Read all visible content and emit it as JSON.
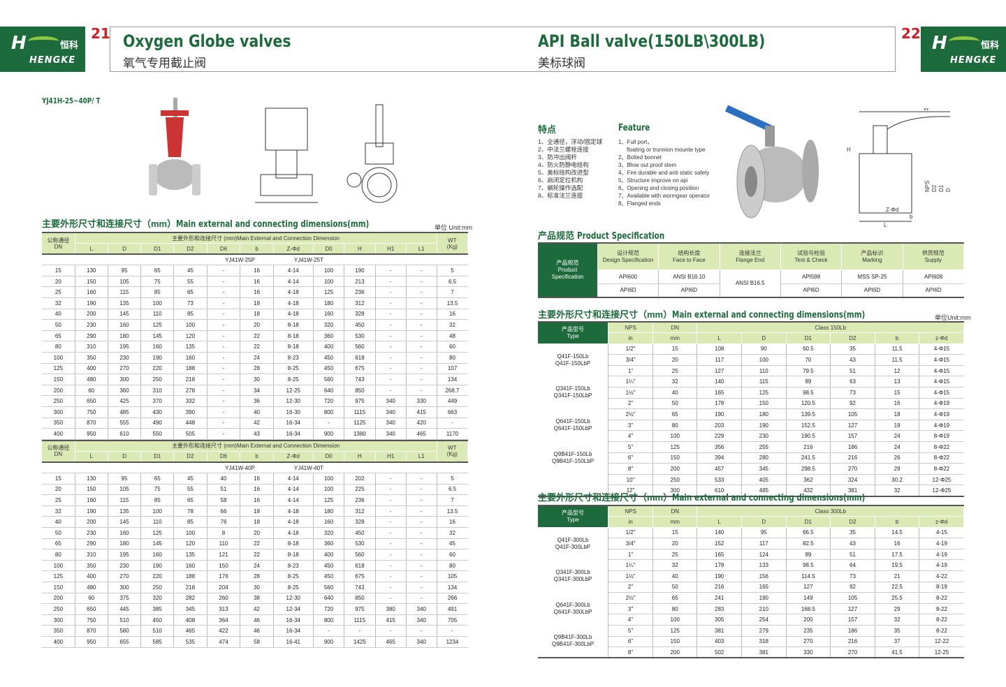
{
  "left": {
    "page_number": "21",
    "logo": {
      "cn": "恒科",
      "en": "HENGKE"
    },
    "title": "Oxygen Globe valves",
    "subtitle": "氧气专用截止阀",
    "model": "YJ41H-25~40P/ T",
    "section_heading_cn": "主要外形尺寸和连接尺寸（mm）",
    "section_heading_en": "Main external and connecting dimensions(mm)",
    "unit": "单位 Unit:mm",
    "header": {
      "dn_cn": "公称通径",
      "dn_en": "DN",
      "group": "主要外形和连接尺寸 (mm)Main External and Connection Dimension",
      "wt": "WT",
      "wt_unit": "(Kg)",
      "cols": [
        "L",
        "D",
        "D1",
        "D2",
        "D6",
        "b",
        "Z-Φd",
        "D0",
        "H",
        "H1",
        "L1"
      ]
    },
    "tables": [
      {
        "models": [
          "YJ41W-25P",
          "YJ41W-25T"
        ],
        "rows": [
          [
            "15",
            "130",
            "95",
            "65",
            "45",
            "-",
            "16",
            "4-14",
            "100",
            "190",
            "-",
            "-",
            "5"
          ],
          [
            "20",
            "150",
            "105",
            "75",
            "55",
            "-",
            "16",
            "4-14",
            "100",
            "213",
            "-",
            "-",
            "6.5"
          ],
          [
            "25",
            "160",
            "115",
            "85",
            "65",
            "-",
            "16",
            "4-18",
            "125",
            "236",
            "-",
            "-",
            "7"
          ],
          [
            "32",
            "190",
            "135",
            "100",
            "73",
            "-",
            "18",
            "4-18",
            "180",
            "312",
            "-",
            "-",
            "13.5"
          ],
          [
            "40",
            "200",
            "145",
            "110",
            "85",
            "-",
            "18",
            "4-18",
            "160",
            "328",
            "-",
            "-",
            "16"
          ],
          [
            "50",
            "230",
            "160",
            "125",
            "100",
            "-",
            "20",
            "8-18",
            "320",
            "450",
            "-",
            "-",
            "32"
          ],
          [
            "65",
            "290",
            "180",
            "145",
            "120",
            "-",
            "22",
            "8-18",
            "360",
            "530",
            "-",
            "-",
            "48"
          ],
          [
            "80",
            "310",
            "195",
            "160",
            "135",
            "-",
            "22",
            "8-18",
            "400",
            "560",
            "-",
            "-",
            "60"
          ],
          [
            "100",
            "350",
            "230",
            "190",
            "160",
            "-",
            "24",
            "8-23",
            "450",
            "618",
            "-",
            "-",
            "80"
          ],
          [
            "125",
            "400",
            "270",
            "220",
            "188",
            "-",
            "28",
            "8-25",
            "450",
            "675",
            "-",
            "-",
            "107"
          ],
          [
            "150",
            "480",
            "300",
            "250",
            "218",
            "-",
            "30",
            "8-25",
            "560",
            "743",
            "-",
            "-",
            "134"
          ],
          [
            "200",
            "60",
            "360",
            "310",
            "278",
            "-",
            "34",
            "12-25",
            "640",
            "850",
            "-",
            "-",
            "268.7"
          ],
          [
            "250",
            "650",
            "425",
            "370",
            "332",
            "-",
            "36",
            "12-30",
            "720",
            "975",
            "340",
            "330",
            "449"
          ],
          [
            "300",
            "750",
            "485",
            "430",
            "390",
            "-",
            "40",
            "16-30",
            "800",
            "1115",
            "340",
            "415",
            "663"
          ],
          [
            "350",
            "870",
            "555",
            "490",
            "448",
            "-",
            "42",
            "16-34",
            "-",
            "1125",
            "340",
            "420",
            "-"
          ],
          [
            "400",
            "950",
            "610",
            "550",
            "505",
            "-",
            "43",
            "16-34",
            "900",
            "1380",
            "340",
            "465",
            "1170"
          ]
        ]
      },
      {
        "models": [
          "YJ41W-40P",
          "YJ41W-40T"
        ],
        "rows": [
          [
            "15",
            "130",
            "95",
            "65",
            "45",
            "40",
            "16",
            "4-14",
            "100",
            "202",
            "-",
            "-",
            "5"
          ],
          [
            "20",
            "150",
            "105",
            "75",
            "55",
            "51",
            "16",
            "4-14",
            "100",
            "225",
            "-",
            "-",
            "6.5"
          ],
          [
            "25",
            "160",
            "115",
            "85",
            "65",
            "58",
            "16",
            "4-14",
            "125",
            "236",
            "-",
            "-",
            "7"
          ],
          [
            "32",
            "190",
            "135",
            "100",
            "78",
            "66",
            "18",
            "4-18",
            "180",
            "312",
            "-",
            "-",
            "13.5"
          ],
          [
            "40",
            "200",
            "145",
            "110",
            "85",
            "76",
            "18",
            "4-18",
            "160",
            "328",
            "-",
            "-",
            "16"
          ],
          [
            "50",
            "230",
            "160",
            "125",
            "100",
            "8",
            "20",
            "4-18",
            "320",
            "450",
            "-",
            "-",
            "32"
          ],
          [
            "65",
            "290",
            "180",
            "145",
            "120",
            "110",
            "22",
            "8-18",
            "360",
            "530",
            "-",
            "-",
            "45"
          ],
          [
            "80",
            "310",
            "195",
            "160",
            "135",
            "121",
            "22",
            "8-18",
            "400",
            "560",
            "-",
            "-",
            "60"
          ],
          [
            "100",
            "350",
            "230",
            "190",
            "160",
            "150",
            "24",
            "8-23",
            "450",
            "618",
            "-",
            "-",
            "80"
          ],
          [
            "125",
            "400",
            "270",
            "220",
            "188",
            "176",
            "28",
            "8-25",
            "450",
            "675",
            "-",
            "-",
            "105"
          ],
          [
            "150",
            "480",
            "300",
            "250",
            "218",
            "204",
            "30",
            "8-25",
            "560",
            "743",
            "-",
            "-",
            "134"
          ],
          [
            "200",
            "60",
            "375",
            "320",
            "282",
            "260",
            "38",
            "12-30",
            "640",
            "850",
            "-",
            "-",
            "266"
          ],
          [
            "250",
            "650",
            "445",
            "385",
            "345",
            "313",
            "42",
            "12-34",
            "720",
            "975",
            "380",
            "340",
            "491"
          ],
          [
            "300",
            "750",
            "510",
            "450",
            "408",
            "364",
            "46",
            "16-34",
            "800",
            "1115",
            "415",
            "340",
            "705"
          ],
          [
            "350",
            "870",
            "580",
            "510",
            "465",
            "422",
            "46",
            "16-34",
            "-",
            "-",
            "-",
            "-",
            "-"
          ],
          [
            "400",
            "950",
            "655",
            "585",
            "535",
            "474",
            "58",
            "16-41",
            "900",
            "1425",
            "465",
            "340",
            "1234"
          ]
        ]
      }
    ]
  },
  "right": {
    "page_number": "22",
    "logo": {
      "cn": "恒科",
      "en": "HENGKE"
    },
    "title": "API Ball valve(150LB\\300LB)",
    "subtitle": "美标球阀",
    "features_cn_title": "特点",
    "features_en_title": "Feature",
    "features_cn": [
      "1、全通径，浮动/固定球",
      "2、中法兰螺栓连接",
      "3、防冲出阀杆",
      "4、防火防静电结构",
      "5、美标结构改进型",
      "6、启闭定位机构",
      "7、蜗轮操作选配",
      "8、标准法兰连接"
    ],
    "features_en": [
      "1、Full port，",
      "floating or trunnion mounte type",
      "2、Bolted bonnet",
      "3、Blow out proof stem",
      "4、Fire durable and anti static safety",
      "5、Structure improve on api",
      "6、Opening and closing position",
      "7、Available with wormgear operator",
      "8、Flanged ends"
    ],
    "drawing_labels": [
      "W",
      "H",
      "NPS",
      "D2",
      "D1",
      "D",
      "Z-Φd",
      "b",
      "L"
    ],
    "spec": {
      "heading_cn": "产品规范",
      "heading_en": "Product Specification",
      "row_head": [
        "产品规范",
        "Product",
        "Specification"
      ],
      "cols": [
        [
          "设计规范",
          "Design Specification"
        ],
        [
          "结构长度",
          "Face to Face"
        ],
        [
          "连接法兰",
          "Flange End"
        ],
        [
          "试验与检验",
          "Test & Check"
        ],
        [
          "产品标识",
          "Marking"
        ],
        [
          "供货规范",
          "Supply"
        ]
      ],
      "row1": [
        "API600",
        "ANSI B16.10",
        "ANSI B16.5",
        "API598",
        "MSS SP-25",
        "API608"
      ],
      "row2": [
        "API6D",
        "API6D",
        "API6D",
        "API6D",
        "API6D"
      ]
    },
    "section_heading_cn": "主要外形尺寸和连接尺寸（mm）",
    "section_heading_en": "Main external and connecting dimensions(mm)",
    "unit": "单位Unit:mm",
    "dim_header": {
      "type_cn": "产品型号",
      "type_en": "Type",
      "nps": "NPS",
      "nps_unit": "in",
      "dn": "DN",
      "dn_unit": "mm",
      "cols": [
        "L",
        "D",
        "D1",
        "D2",
        "b",
        "z-Φd"
      ]
    },
    "tables": [
      {
        "class": "Class 150Lb",
        "types": [
          [
            "Q41F-150Lb",
            "Q41F-150LbP"
          ],
          [
            "Q341F-150Lb",
            "Q341F-150LbP"
          ],
          [
            "Q641F-150Lb",
            "Q641F-150LbP"
          ],
          [
            "Q9B41F-150Lb",
            "Q9B41F-150LbP"
          ]
        ],
        "rows": [
          [
            "1/2\"",
            "15",
            "108",
            "90",
            "60.5",
            "35",
            "11.5",
            "4-Φ15"
          ],
          [
            "3/4\"",
            "20",
            "117",
            "100",
            "70",
            "43",
            "11.5",
            "4-Φ15"
          ],
          [
            "1\"",
            "25",
            "127",
            "110",
            "79.5",
            "51",
            "12",
            "4-Φ15"
          ],
          [
            "1¼\"",
            "32",
            "140",
            "115",
            "89",
            "63",
            "13",
            "4-Φ15"
          ],
          [
            "1½\"",
            "40",
            "165",
            "125",
            "98.5",
            "73",
            "15",
            "4-Φ15"
          ],
          [
            "2\"",
            "50",
            "178",
            "150",
            "120.5",
            "92",
            "16",
            "4-Φ19"
          ],
          [
            "2½\"",
            "65",
            "190",
            "180",
            "139.5",
            "105",
            "18",
            "4-Φ19"
          ],
          [
            "3\"",
            "80",
            "203",
            "190",
            "152.5",
            "127",
            "19",
            "4-Φ19"
          ],
          [
            "4\"",
            "100",
            "229",
            "230",
            "190.5",
            "157",
            "24",
            "8-Φ19"
          ],
          [
            "5\"",
            "125",
            "356",
            "255",
            "216",
            "186",
            "24",
            "8-Φ22"
          ],
          [
            "6\"",
            "150",
            "394",
            "280",
            "241.5",
            "216",
            "26",
            "8-Φ22"
          ],
          [
            "8\"",
            "200",
            "457",
            "345",
            "298.5",
            "270",
            "29",
            "8-Φ22"
          ],
          [
            "10\"",
            "250",
            "533",
            "405",
            "362",
            "324",
            "30.2",
            "12-Φ25"
          ],
          [
            "12\"",
            "300",
            "610",
            "485",
            "432",
            "381",
            "32",
            "12-Φ25"
          ]
        ]
      },
      {
        "class": "Class 300Lb",
        "types": [
          [
            "Q41F-300Lb",
            "Q41F-300LbP"
          ],
          [
            "Q341F-300Lb",
            "Q341F-300LbP"
          ],
          [
            "Q641F-300Lb",
            "Q641F-300LbP"
          ],
          [
            "Q9B41F-300Lb",
            "Q9B41F-300LbP"
          ]
        ],
        "rows": [
          [
            "1/2\"",
            "15",
            "140",
            "95",
            "66.5",
            "35",
            "14.5",
            "4-15"
          ],
          [
            "3/4\"",
            "20",
            "152",
            "117",
            "82.5",
            "43",
            "16",
            "4-19"
          ],
          [
            "1\"",
            "25",
            "165",
            "124",
            "89",
            "51",
            "17.5",
            "4-19"
          ],
          [
            "1¼\"",
            "32",
            "178",
            "133",
            "98.5",
            "64",
            "19.5",
            "4-19"
          ],
          [
            "1½\"",
            "40",
            "190",
            "156",
            "114.5",
            "73",
            "21",
            "4-22"
          ],
          [
            "2\"",
            "50",
            "216",
            "165",
            "127",
            "92",
            "22.5",
            "8-19"
          ],
          [
            "2½\"",
            "65",
            "241",
            "190",
            "149",
            "105",
            "25.5",
            "8-22"
          ],
          [
            "3\"",
            "80",
            "283",
            "210",
            "168.5",
            "127",
            "29",
            "8-22"
          ],
          [
            "4\"",
            "100",
            "305",
            "254",
            "200",
            "157",
            "32",
            "8-22"
          ],
          [
            "5\"",
            "125",
            "381",
            "279",
            "235",
            "186",
            "35",
            "8-22"
          ],
          [
            "6\"",
            "150",
            "403",
            "318",
            "270",
            "216",
            "37",
            "12-22"
          ],
          [
            "8\"",
            "200",
            "502",
            "381",
            "330",
            "270",
            "41.5",
            "12-25"
          ]
        ]
      }
    ]
  },
  "colors": {
    "brand_green": "#1d6b3c",
    "header_green": "#dbeab5",
    "page_number_red": "#d0202a",
    "handle_blue": "#2a6fc0"
  }
}
